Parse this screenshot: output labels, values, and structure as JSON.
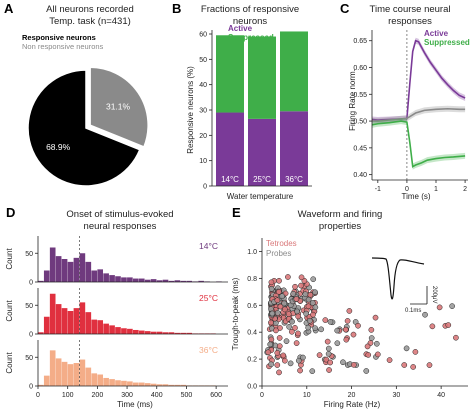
{
  "colors": {
    "active": "#7a3a98",
    "suppressed": "#3fae49",
    "nonresp_gray": "#8a8a8a",
    "resp_black": "#000000",
    "c14": "#6f3a7e",
    "c25": "#e0303f",
    "c36": "#f4ad88",
    "tetrode": "#d9787a",
    "probe": "#9a9a9a"
  },
  "chart_data": [
    {
      "id": "A",
      "type": "pie",
      "letter": "A",
      "title_lines": [
        "All neurons recorded",
        "Temp. task (n=431)"
      ],
      "legend": [
        "Responsive neurons",
        "Non responsive neurons"
      ],
      "slices": [
        {
          "name": "Responsive neurons",
          "value": 68.9,
          "label": "68.9%"
        },
        {
          "name": "Non responsive neurons",
          "value": 31.1,
          "label": "31.1%"
        }
      ]
    },
    {
      "id": "B",
      "type": "bar",
      "letter": "B",
      "title_lines": [
        "Fractions of responsive",
        "neurons"
      ],
      "legend": [
        "Active",
        "Suppressed"
      ],
      "categories": [
        "14°C",
        "25°C",
        "36°C"
      ],
      "series": [
        {
          "name": "Active",
          "values": [
            29,
            26.5,
            29.5
          ]
        },
        {
          "name": "Suppressed",
          "values": [
            30.5,
            32.5,
            31.5
          ]
        }
      ],
      "ylabel": "Responsive neurons (%)",
      "xlabel": "Water temperature",
      "ylim": [
        0,
        60
      ],
      "yticks": [
        0,
        10,
        20,
        30,
        40,
        50,
        60
      ]
    },
    {
      "id": "C",
      "type": "line",
      "letter": "C",
      "title_lines": [
        "Time course neural",
        "responses"
      ],
      "legend": [
        "Active",
        "Suppressed"
      ],
      "xlabel": "Time (s)",
      "ylabel": "Firing Rate norm.",
      "xlim": [
        -1.2,
        2.1
      ],
      "ylim": [
        0.39,
        0.67
      ],
      "xticks": [
        -1,
        0,
        1,
        2
      ],
      "yticks": [
        0.4,
        0.45,
        0.5,
        0.55,
        0.6,
        0.65
      ],
      "vline": 0,
      "series": [
        {
          "name": "Active",
          "color_key": "active",
          "x": [
            -1.2,
            -1.0,
            -0.6,
            -0.2,
            0.0,
            0.1,
            0.2,
            0.3,
            0.4,
            0.5,
            0.6,
            0.8,
            1.0,
            1.2,
            1.4,
            1.6,
            1.8,
            2.0
          ],
          "y": [
            0.503,
            0.502,
            0.503,
            0.504,
            0.505,
            0.57,
            0.63,
            0.65,
            0.648,
            0.638,
            0.628,
            0.61,
            0.595,
            0.58,
            0.568,
            0.557,
            0.548,
            0.543
          ]
        },
        {
          "name": "Non responsive",
          "color_key": "nonresp_gray",
          "x": [
            -1.2,
            -1.0,
            -0.6,
            -0.2,
            0.0,
            0.3,
            0.6,
            1.0,
            1.4,
            1.8,
            2.0
          ],
          "y": [
            0.5,
            0.5,
            0.502,
            0.504,
            0.505,
            0.515,
            0.52,
            0.522,
            0.523,
            0.522,
            0.522
          ]
        },
        {
          "name": "Suppressed",
          "color_key": "suppressed",
          "x": [
            -1.2,
            -1.0,
            -0.6,
            -0.2,
            0.0,
            0.1,
            0.2,
            0.3,
            0.5,
            0.7,
            1.0,
            1.3,
            1.6,
            1.8,
            2.0
          ],
          "y": [
            0.493,
            0.495,
            0.497,
            0.5,
            0.498,
            0.46,
            0.415,
            0.418,
            0.422,
            0.427,
            0.43,
            0.432,
            0.433,
            0.434,
            0.435
          ]
        }
      ]
    },
    {
      "id": "D",
      "type": "bar",
      "letter": "D",
      "title_lines": [
        "Onset of stimulus-evoked",
        "neural responses"
      ],
      "xlabel": "Time (ms)",
      "ylabel": "Count",
      "xticks": [
        0,
        100,
        200,
        300,
        400,
        500,
        600
      ],
      "xlim": [
        0,
        640
      ],
      "bin_width": 20,
      "ylim": [
        0,
        80
      ],
      "yticks": [
        0,
        50
      ],
      "vline": 140,
      "panels": [
        {
          "label": "14°C",
          "color_key": "c14",
          "values": [
            2,
            20,
            60,
            45,
            40,
            35,
            42,
            50,
            35,
            20,
            22,
            15,
            12,
            10,
            8,
            8,
            6,
            6,
            4,
            5,
            3,
            4,
            2,
            3,
            2,
            2,
            1,
            2,
            1,
            0,
            1,
            0
          ]
        },
        {
          "label": "25°C",
          "color_key": "c25",
          "values": [
            3,
            30,
            70,
            52,
            45,
            40,
            45,
            55,
            38,
            25,
            24,
            18,
            15,
            12,
            10,
            9,
            7,
            6,
            5,
            4,
            4,
            3,
            3,
            2,
            2,
            2,
            1,
            1,
            1,
            1,
            0,
            0
          ]
        },
        {
          "label": "36°C",
          "color_key": "c36",
          "values": [
            2,
            18,
            62,
            48,
            42,
            38,
            40,
            46,
            32,
            22,
            20,
            14,
            12,
            10,
            9,
            8,
            6,
            6,
            5,
            4,
            3,
            3,
            2,
            2,
            2,
            1,
            1,
            1,
            1,
            1,
            0,
            0
          ]
        }
      ]
    },
    {
      "id": "E",
      "type": "scatter",
      "letter": "E",
      "title_lines": [
        "Waveform and firing",
        "properties"
      ],
      "legend": [
        "Tetrodes",
        "Probes"
      ],
      "xlabel": "Firing Rate (Hz)",
      "ylabel": "Trough-to-peak (ms)",
      "xlim": [
        0,
        46
      ],
      "ylim": [
        0,
        1.1
      ],
      "xticks": [
        0,
        10,
        20,
        30,
        40
      ],
      "yticks": [
        0,
        0.2,
        0.4,
        0.6,
        0.8,
        1.0
      ],
      "inset": {
        "scale_y": "200μV",
        "scale_x": "0.1ms"
      }
    }
  ]
}
